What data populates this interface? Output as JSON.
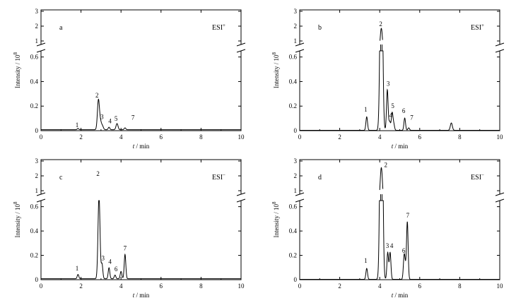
{
  "chart_data": [
    {
      "type": "line",
      "panel_letter": "a",
      "mode": "ESI",
      "mode_sup": "+",
      "xlabel_var": "t",
      "xlabel_unit": " / min",
      "ylabel": "Intensity / 10",
      "ylabel_sup": "8",
      "xlim": [
        0,
        10
      ],
      "xticks": [
        "0",
        "2",
        "4",
        "6",
        "8",
        "10"
      ],
      "y_lower_range": [
        0,
        0.65
      ],
      "y_lower_ticks": [
        "0",
        "0.2",
        "0.4",
        "0.6"
      ],
      "y_upper_range": [
        1,
        3
      ],
      "y_upper_ticks": [
        "1",
        "2",
        "3"
      ],
      "baseline": 0.008,
      "series": [
        {
          "values": [
            {
              "x": 1.85,
              "y": 0.01,
              "w": 0.04
            },
            {
              "x": 2.87,
              "y": 0.24,
              "w": 0.05
            },
            {
              "x": 2.97,
              "y": 0.06,
              "w": 0.05
            },
            {
              "x": 3.07,
              "y": 0.03,
              "w": 0.05
            },
            {
              "x": 3.4,
              "y": 0.02,
              "w": 0.04
            },
            {
              "x": 3.8,
              "y": 0.05,
              "w": 0.05
            },
            {
              "x": 4.2,
              "y": 0.015,
              "w": 0.04
            }
          ]
        }
      ],
      "peak_labels": [
        {
          "text": "1",
          "x": 1.8,
          "y": 0.03
        },
        {
          "text": "2",
          "x": 2.8,
          "y": 0.27
        },
        {
          "text": "3",
          "x": 3.05,
          "y": 0.095
        },
        {
          "text": "4",
          "x": 3.45,
          "y": 0.06
        },
        {
          "text": "5",
          "x": 3.75,
          "y": 0.08
        },
        {
          "text": "7",
          "x": 4.6,
          "y": 0.09
        }
      ]
    },
    {
      "type": "line",
      "panel_letter": "b",
      "mode": "ESI",
      "mode_sup": "+",
      "xlabel_var": "t",
      "xlabel_unit": " / min",
      "ylabel": "Intensity / 10",
      "ylabel_sup": "8",
      "xlim": [
        0,
        10
      ],
      "xticks": [
        "0",
        "2",
        "4",
        "6",
        "8",
        "10"
      ],
      "y_lower_range": [
        0,
        0.65
      ],
      "y_lower_ticks": [
        "0",
        "0.2",
        "0.4",
        "0.6"
      ],
      "y_upper_range": [
        1,
        3
      ],
      "y_upper_ticks": [
        "1",
        "2",
        "3"
      ],
      "baseline": 0.003,
      "series": [
        {
          "values": [
            {
              "x": 3.35,
              "y": 0.11,
              "w": 0.04
            },
            {
              "x": 4.08,
              "y": 1.85,
              "w": 0.06
            },
            {
              "x": 4.38,
              "y": 0.33,
              "w": 0.04
            },
            {
              "x": 4.5,
              "y": 0.07,
              "w": 0.04
            },
            {
              "x": 4.62,
              "y": 0.14,
              "w": 0.04
            },
            {
              "x": 4.7,
              "y": 0.05,
              "w": 0.04
            },
            {
              "x": 5.25,
              "y": 0.1,
              "w": 0.04
            },
            {
              "x": 5.45,
              "y": 0.02,
              "w": 0.04
            },
            {
              "x": 7.58,
              "y": 0.06,
              "w": 0.05
            }
          ]
        }
      ],
      "peak_labels": [
        {
          "text": "1",
          "x": 3.3,
          "y": 0.155
        },
        {
          "text": "2",
          "x": 4.05,
          "y": 2.0
        },
        {
          "text": "3",
          "x": 4.42,
          "y": 0.365
        },
        {
          "text": "5",
          "x": 4.65,
          "y": 0.185
        },
        {
          "text": "4",
          "x": 4.55,
          "y": 0.105
        },
        {
          "text": "6",
          "x": 5.2,
          "y": 0.145
        },
        {
          "text": "7",
          "x": 5.6,
          "y": 0.09
        }
      ]
    },
    {
      "type": "line",
      "panel_letter": "c",
      "mode": "ESI",
      "mode_sup": "−",
      "xlabel_var": "t",
      "xlabel_unit": " / min",
      "ylabel": "Intensity / 10",
      "ylabel_sup": "8",
      "xlim": [
        0,
        10
      ],
      "xticks": [
        "0",
        "2",
        "4",
        "6",
        "8",
        "10"
      ],
      "y_lower_range": [
        0,
        0.65
      ],
      "y_lower_ticks": [
        "0",
        "0.2",
        "0.4",
        "0.6"
      ],
      "y_upper_range": [
        1,
        3
      ],
      "y_upper_ticks": [
        "1",
        "2",
        "3"
      ],
      "baseline": 0.008,
      "series": [
        {
          "values": [
            {
              "x": 1.85,
              "y": 0.035,
              "w": 0.04
            },
            {
              "x": 2.9,
              "y": 0.68,
              "w": 0.05
            },
            {
              "x": 3.05,
              "y": 0.12,
              "w": 0.04
            },
            {
              "x": 3.4,
              "y": 0.09,
              "w": 0.04
            },
            {
              "x": 3.7,
              "y": 0.03,
              "w": 0.04
            },
            {
              "x": 4.0,
              "y": 0.06,
              "w": 0.04
            },
            {
              "x": 4.2,
              "y": 0.2,
              "w": 0.04
            }
          ]
        }
      ],
      "peak_labels": [
        {
          "text": "1",
          "x": 1.8,
          "y": 0.075
        },
        {
          "text": "2",
          "x": 2.85,
          "y": 2.0
        },
        {
          "text": "3",
          "x": 3.1,
          "y": 0.16
        },
        {
          "text": "4",
          "x": 3.45,
          "y": 0.13
        },
        {
          "text": "6",
          "x": 3.75,
          "y": 0.07
        },
        {
          "text": "7",
          "x": 4.2,
          "y": 0.24
        }
      ]
    },
    {
      "type": "line",
      "panel_letter": "d",
      "mode": "ESI",
      "mode_sup": "−",
      "xlabel_var": "t",
      "xlabel_unit": " / min",
      "ylabel": "Intensity / 10",
      "ylabel_sup": "8",
      "xlim": [
        0,
        10
      ],
      "xticks": [
        "0",
        "2",
        "4",
        "6",
        "8",
        "10"
      ],
      "y_lower_range": [
        0,
        0.65
      ],
      "y_lower_ticks": [
        "0",
        "0.2",
        "0.4",
        "0.6"
      ],
      "y_upper_range": [
        1,
        3
      ],
      "y_upper_ticks": [
        "1",
        "2",
        "3"
      ],
      "baseline": 0.003,
      "series": [
        {
          "values": [
            {
              "x": 3.35,
              "y": 0.09,
              "w": 0.04
            },
            {
              "x": 4.08,
              "y": 2.55,
              "w": 0.06
            },
            {
              "x": 4.4,
              "y": 0.22,
              "w": 0.04
            },
            {
              "x": 4.52,
              "y": 0.22,
              "w": 0.04
            },
            {
              "x": 5.22,
              "y": 0.18,
              "w": 0.04
            },
            {
              "x": 5.38,
              "y": 0.47,
              "w": 0.04
            },
            {
              "x": 5.28,
              "y": 0.08,
              "w": 0.04
            }
          ]
        }
      ],
      "peak_labels": [
        {
          "text": "1",
          "x": 3.3,
          "y": 0.14
        },
        {
          "text": "2",
          "x": 4.3,
          "y": 2.6
        },
        {
          "text": "3",
          "x": 4.38,
          "y": 0.26
        },
        {
          "text": "4",
          "x": 4.6,
          "y": 0.26
        },
        {
          "text": "6",
          "x": 5.2,
          "y": 0.22
        },
        {
          "text": "7",
          "x": 5.4,
          "y": 0.51
        }
      ]
    }
  ]
}
